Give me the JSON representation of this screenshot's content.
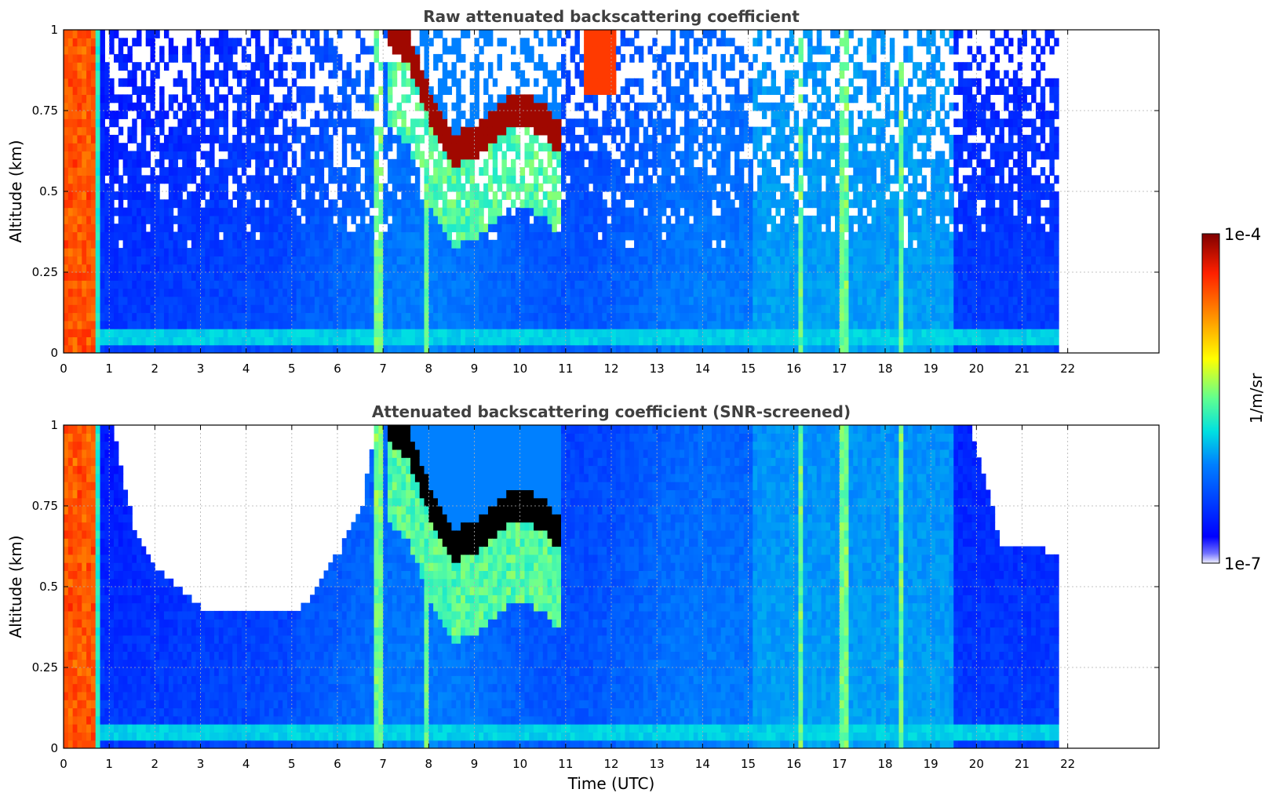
{
  "chart_data": [
    {
      "type": "heatmap",
      "title": "Raw attenuated backscattering coefficient",
      "xlabel": "",
      "ylabel": "Altitude (km)",
      "xlim": [
        0,
        24
      ],
      "ylim": [
        0,
        1
      ],
      "xticks": [
        "0",
        "1",
        "2",
        "3",
        "4",
        "5",
        "6",
        "7",
        "8",
        "9",
        "10",
        "11",
        "12",
        "13",
        "14",
        "15",
        "16",
        "17",
        "18",
        "19",
        "20",
        "21",
        "22"
      ],
      "yticks": [
        "0",
        "0.25",
        "0.5",
        "0.75",
        "1"
      ],
      "grid": true,
      "data_time_range": [
        0,
        21.8
      ],
      "screened": false,
      "cloud_layer": {
        "time_start": 7.0,
        "time_end": 10.8,
        "altitude_km": [
          [
            7.0,
            1.0
          ],
          [
            7.5,
            0.93
          ],
          [
            8.0,
            0.74
          ],
          [
            8.5,
            0.62
          ],
          [
            9.0,
            0.64
          ],
          [
            9.5,
            0.71
          ],
          [
            10.0,
            0.75
          ],
          [
            10.5,
            0.7
          ],
          [
            10.8,
            0.66
          ]
        ],
        "value": "1e-4"
      },
      "upper_feature": {
        "time_start": 11.3,
        "time_end": 12.0,
        "altitude_km": [
          0.8,
          0.98
        ]
      }
    },
    {
      "type": "heatmap",
      "title": "Attenuated backscattering coefficient (SNR-screened)",
      "xlabel": "Time (UTC)",
      "ylabel": "Altitude (km)",
      "xlim": [
        0,
        24
      ],
      "ylim": [
        0,
        1
      ],
      "xticks": [
        "0",
        "1",
        "2",
        "3",
        "4",
        "5",
        "6",
        "7",
        "8",
        "9",
        "10",
        "11",
        "12",
        "13",
        "14",
        "15",
        "16",
        "17",
        "18",
        "19",
        "20",
        "21",
        "22"
      ],
      "yticks": [
        "0",
        "0.25",
        "0.5",
        "0.75",
        "1"
      ],
      "grid": true,
      "data_time_range": [
        0,
        21.8
      ],
      "screened": true,
      "cloud_layer": {
        "time_start": 7.0,
        "time_end": 10.8,
        "altitude_km": [
          [
            7.0,
            1.0
          ],
          [
            7.5,
            0.93
          ],
          [
            8.0,
            0.74
          ],
          [
            8.5,
            0.62
          ],
          [
            9.0,
            0.64
          ],
          [
            9.5,
            0.71
          ],
          [
            10.0,
            0.75
          ],
          [
            10.5,
            0.7
          ],
          [
            10.8,
            0.66
          ]
        ],
        "value": ">1e-4"
      },
      "screened_boundary_km": [
        [
          1.0,
          1.0
        ],
        [
          1.5,
          0.66
        ],
        [
          2.0,
          0.55
        ],
        [
          3.0,
          0.42
        ],
        [
          4.0,
          0.42
        ],
        [
          5.0,
          0.4
        ],
        [
          5.5,
          0.48
        ],
        [
          6.0,
          0.6
        ],
        [
          6.5,
          0.75
        ],
        [
          6.8,
          1.0
        ],
        [
          15.0,
          1.0
        ],
        [
          19.8,
          1.0
        ],
        [
          20.5,
          0.62
        ],
        [
          21.5,
          0.6
        ]
      ]
    }
  ],
  "colorbar": {
    "label": "1/m/sr",
    "max_label": "1e-4",
    "min_label": "1e-7",
    "scale": "log",
    "range": [
      1e-07,
      0.0001
    ],
    "colormap": "jet"
  }
}
